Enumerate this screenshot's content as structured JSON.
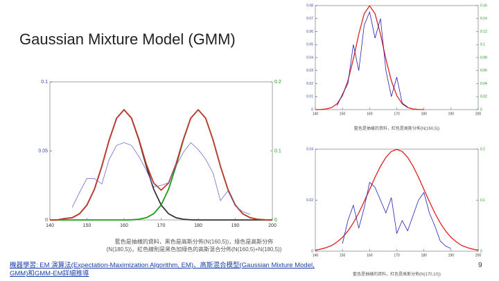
{
  "slide": {
    "title": "Gaussian Mixture Model (GMM)",
    "link": "機器學習: EM 演算法(Expectation-Maximization Algorithm, EM)、高斯混合模型(Gaussian Mixture Model, GMM)和GMM-EM詳細推導",
    "page_number": "9"
  },
  "chart_data": [
    {
      "type": "line",
      "caption": "藍色是抽樣的資料，黑色是高斯分佈(N(160,5))，綠色是高斯分佈(N(180,5))，紅色線則是黑色加綠色的高斯混合分佈(N(160,5)+N(180,5))",
      "x": [
        140,
        142,
        144,
        146,
        148,
        150,
        152,
        154,
        156,
        158,
        160,
        162,
        164,
        166,
        168,
        170,
        172,
        174,
        176,
        178,
        180,
        182,
        184,
        186,
        188,
        190,
        192,
        194,
        196,
        198,
        200
      ],
      "xlim": [
        140,
        200
      ],
      "xticks": [
        140,
        150,
        160,
        170,
        180,
        190,
        200
      ],
      "ylim": [
        0,
        0.1
      ],
      "yticks": [
        0,
        0.05,
        0.1
      ],
      "y2lim": [
        0,
        0.2
      ],
      "y2ticks": [
        0,
        0.1,
        0.2
      ],
      "series": [
        {
          "name": "N(160,5)",
          "color": "#333333",
          "values": [
            0,
            0,
            0.001,
            0.0016,
            0.0045,
            0.0108,
            0.0222,
            0.0388,
            0.058,
            0.0737,
            0.0798,
            0.0737,
            0.058,
            0.0388,
            0.0222,
            0.0108,
            0.0045,
            0.0016,
            0.0005,
            0.0001,
            0,
            0,
            0,
            0,
            0,
            0,
            0,
            0,
            0,
            0,
            0
          ]
        },
        {
          "name": "N(180,5)",
          "color": "#1a9a1a",
          "values": [
            0,
            0,
            0,
            0,
            0,
            0,
            0,
            0,
            0,
            0,
            0,
            0.0001,
            0.0005,
            0.0016,
            0.0045,
            0.0108,
            0.0222,
            0.0388,
            0.058,
            0.0737,
            0.0798,
            0.0737,
            0.058,
            0.0388,
            0.0222,
            0.0108,
            0.0045,
            0.0016,
            0.0005,
            0.0001,
            0
          ]
        },
        {
          "name": "N(160,5)+N(180,5)",
          "color": "#c0392b",
          "values": [
            0,
            0,
            0.001,
            0.0016,
            0.0045,
            0.0108,
            0.0222,
            0.0388,
            0.058,
            0.0737,
            0.0798,
            0.0738,
            0.0585,
            0.0404,
            0.0267,
            0.0216,
            0.0267,
            0.0404,
            0.0585,
            0.0738,
            0.0798,
            0.0737,
            0.058,
            0.0388,
            0.0222,
            0.0108,
            0.0045,
            0.0016,
            0.0005,
            0.0001,
            0
          ]
        },
        {
          "name": "sample",
          "color": "#6a6ad8",
          "values": [
            null,
            null,
            null,
            0.009,
            0.02,
            0.03,
            0.03,
            0.026,
            0.044,
            0.054,
            0.056,
            0.054,
            0.046,
            0.036,
            0.024,
            0.025,
            0.027,
            0.039,
            0.049,
            0.056,
            0.051,
            0.044,
            0.034,
            0.014,
            0.021,
            0.01,
            0.006,
            0.004,
            null,
            null,
            null
          ]
        }
      ]
    },
    {
      "type": "line",
      "caption": "藍色是抽樣的資料，紅色是高斯分佈(N(160,5))",
      "x": [
        140,
        142,
        144,
        146,
        148,
        150,
        152,
        154,
        156,
        158,
        160,
        162,
        164,
        166,
        168,
        170,
        172,
        174,
        176,
        178,
        180,
        182,
        184,
        186,
        188,
        190,
        192,
        194,
        196,
        198,
        200
      ],
      "xlim": [
        140,
        200
      ],
      "xticks": [
        140,
        150,
        160,
        170,
        180,
        190,
        200
      ],
      "ylim": [
        0,
        0.08
      ],
      "yticks": [
        0,
        0.01,
        0.02,
        0.03,
        0.04,
        0.05,
        0.06,
        0.07,
        0.08
      ],
      "y2lim": [
        0,
        0.16
      ],
      "y2ticks": [
        0,
        0.02,
        0.04,
        0.06,
        0.08,
        0.1,
        0.12,
        0.14,
        0.16
      ],
      "series": [
        {
          "name": "N(160,5)",
          "color": "#e02020",
          "values": [
            0,
            0.0001,
            0.0005,
            0.0016,
            0.0045,
            0.0108,
            0.0222,
            0.0388,
            0.058,
            0.0737,
            0.0798,
            0.0737,
            0.058,
            0.0388,
            0.0222,
            0.0108,
            0.0045,
            0.0016,
            0.0005,
            0.0001,
            0,
            null,
            null,
            null,
            null,
            null,
            null,
            null,
            null,
            null,
            null
          ]
        },
        {
          "name": "sample",
          "color": "#2020b0",
          "values": [
            null,
            null,
            null,
            null,
            0.003,
            0.012,
            0.02,
            0.05,
            0.03,
            0.065,
            0.075,
            0.055,
            0.07,
            0.03,
            0.01,
            0.025,
            0.005,
            0.002,
            null,
            null,
            null,
            null,
            null,
            null,
            null,
            null,
            null,
            null,
            null,
            null,
            null
          ]
        }
      ]
    },
    {
      "type": "line",
      "caption": "藍色是抽樣的資料，紅色是高斯分佈(N(170,10))",
      "x": [
        140,
        142,
        144,
        146,
        148,
        150,
        152,
        154,
        156,
        158,
        160,
        162,
        164,
        166,
        168,
        170,
        172,
        174,
        176,
        178,
        180,
        182,
        184,
        186,
        188,
        190,
        192,
        194,
        196,
        198,
        200
      ],
      "xlim": [
        140,
        200
      ],
      "xticks": [
        140,
        150,
        160,
        170,
        180,
        190,
        200
      ],
      "ylim": [
        0,
        0.04
      ],
      "yticks": [
        0,
        0.02,
        0.04
      ],
      "y2lim": [
        0,
        0.2
      ],
      "y2ticks": [
        0,
        0.1,
        0.2
      ],
      "series": [
        {
          "name": "N(170,10)",
          "color": "#e02020",
          "values": [
            0.0004,
            0.0008,
            0.0014,
            0.0022,
            0.0036,
            0.0054,
            0.0079,
            0.0111,
            0.015,
            0.0195,
            0.0242,
            0.029,
            0.0333,
            0.0368,
            0.0391,
            0.0399,
            0.0391,
            0.0368,
            0.0333,
            0.029,
            0.0242,
            0.0195,
            0.015,
            0.0111,
            0.0079,
            0.0054,
            0.0036,
            0.0022,
            0.0014,
            0.0008,
            0.0004
          ]
        },
        {
          "name": "sample",
          "color": "#2020b0",
          "values": [
            null,
            null,
            null,
            null,
            null,
            0.003,
            0.012,
            0.018,
            0.009,
            0.017,
            0.027,
            0.025,
            0.02,
            0.015,
            0.021,
            0.007,
            0.012,
            0.008,
            0.014,
            0.02,
            0.023,
            0.015,
            0.01,
            0.004,
            0.002,
            0.001,
            null,
            null,
            null,
            null,
            null
          ]
        }
      ]
    }
  ]
}
